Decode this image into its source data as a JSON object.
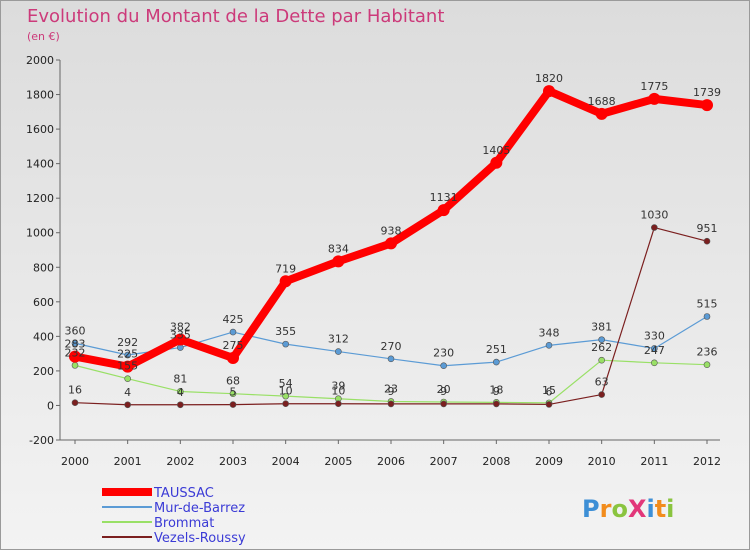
{
  "chart_data": {
    "type": "line",
    "title": "Evolution du Montant de la Dette par Habitant",
    "subtitle": "(en €)",
    "xlabel": "",
    "ylabel": "",
    "x": [
      "2000",
      "2001",
      "2002",
      "2003",
      "2004",
      "2005",
      "2006",
      "2007",
      "2008",
      "2009",
      "2010",
      "2011",
      "2012"
    ],
    "ylim": [
      -200,
      2000
    ],
    "yticks": [
      "-200",
      "0",
      "200",
      "400",
      "600",
      "800",
      "1000",
      "1200",
      "1400",
      "1600",
      "1800",
      "2000"
    ],
    "grid": false,
    "legend": "bottom-left",
    "series": [
      {
        "name": "TAUSSAC",
        "color": "#ff0000",
        "values": [
          283,
          225,
          382,
          275,
          719,
          834,
          938,
          1131,
          1405,
          1820,
          1688,
          1775,
          1739
        ]
      },
      {
        "name": "Mur-de-Barrez",
        "color": "#5b9bd5",
        "values": [
          360,
          292,
          335,
          425,
          355,
          312,
          270,
          230,
          251,
          348,
          381,
          330,
          515
        ]
      },
      {
        "name": "Brommat",
        "color": "#99e066",
        "values": [
          232,
          155,
          81,
          68,
          54,
          39,
          23,
          20,
          18,
          15,
          262,
          247,
          236
        ]
      },
      {
        "name": "Vezels-Roussy",
        "color": "#7b1f1f",
        "values": [
          16,
          4,
          4,
          5,
          10,
          10,
          9,
          9,
          9,
          6,
          63,
          1030,
          951
        ]
      }
    ]
  },
  "branding": {
    "logo_text": "ProXiti",
    "logo_colors": [
      "#3d8fd6",
      "#f28c1c",
      "#8ac43f",
      "#e2377a"
    ]
  }
}
